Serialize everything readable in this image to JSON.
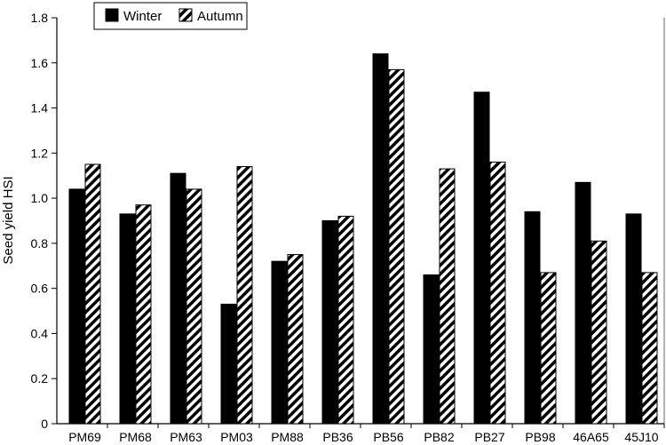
{
  "chart_data": {
    "type": "bar",
    "title": "",
    "xlabel": "",
    "ylabel": "Seed yield HSI",
    "ylim": [
      0,
      1.8
    ],
    "yticks": [
      0,
      0.2,
      0.4,
      0.6,
      0.8,
      1.0,
      1.2,
      1.4,
      1.6,
      1.8
    ],
    "ytick_labels": [
      "0",
      "0.2",
      "0.4",
      "0.6",
      "0.8",
      "1.0",
      "1.2",
      "1.4",
      "1.6",
      "1.8"
    ],
    "grid": false,
    "legend_position": "top-left",
    "categories": [
      "PM69",
      "PM68",
      "PM63",
      "PM03",
      "PM88",
      "PB36",
      "PB56",
      "PB82",
      "PB27",
      "PB98",
      "46A65",
      "45J10"
    ],
    "series": [
      {
        "name": "Winter",
        "pattern": "solid",
        "color": "#000000",
        "values": [
          1.04,
          0.93,
          1.11,
          0.53,
          0.72,
          0.9,
          1.64,
          0.66,
          1.47,
          0.94,
          1.07,
          0.93
        ]
      },
      {
        "name": "Autumn",
        "pattern": "diagonal-hatch",
        "color": "#000000",
        "values": [
          1.15,
          0.97,
          1.04,
          1.14,
          0.75,
          0.92,
          1.57,
          1.13,
          1.16,
          0.67,
          0.81,
          0.67
        ]
      }
    ]
  }
}
